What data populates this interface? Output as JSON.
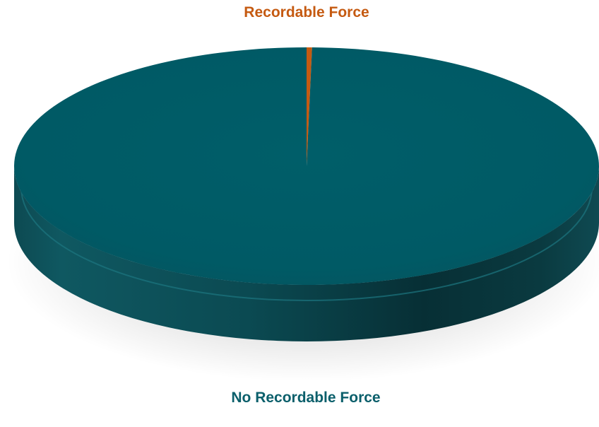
{
  "chart_data": {
    "type": "pie",
    "style": "3d",
    "title": "",
    "slices": [
      {
        "label": "Recordable Force",
        "value": 0.3,
        "color": "#c55a11"
      },
      {
        "label": "No Recordable Force",
        "value": 99.7,
        "color": "#005f6b"
      }
    ],
    "data_labels": {
      "recordable": "Recordable Force",
      "no_recordable": "No Recordable Force"
    },
    "legend": "none",
    "label_colors": {
      "recordable": "#c55a11",
      "no_recordable": "#0b5f6b"
    }
  }
}
